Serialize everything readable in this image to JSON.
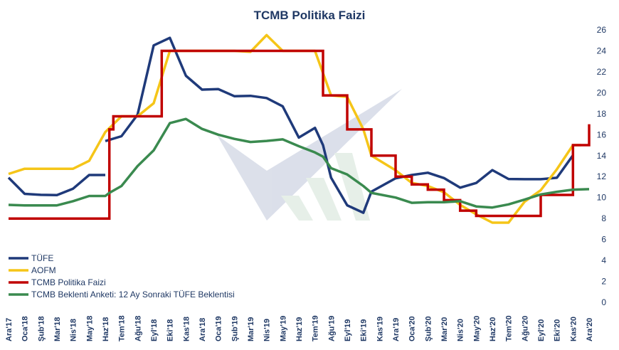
{
  "chart_data": {
    "type": "line",
    "title": "TCMB Politika Faizi",
    "ylim": [
      0,
      26
    ],
    "yticks": [
      0,
      2,
      4,
      6,
      8,
      10,
      12,
      14,
      16,
      18,
      20,
      22,
      24,
      26
    ],
    "x_tick_labels": [
      "Ara'17",
      "Oca'18",
      "Şub'18",
      "Mar'18",
      "Nis'18",
      "May'18",
      "Haz'18",
      "Tem'18",
      "Ağu'18",
      "Eyl'18",
      "Eki'18",
      "Kas'18",
      "Ara'18",
      "Oca'19",
      "Şub'19",
      "Mar'19",
      "Nis'19",
      "May'19",
      "Haz'19",
      "Tem'19",
      "Ağu'19",
      "Eyl'19",
      "Eki'19",
      "Kas'19",
      "Ara'19",
      "Oca'20",
      "Şub'20",
      "Mar'20",
      "Nis'20",
      "May'20",
      "Haz'20",
      "Tem'20",
      "Ağu'20",
      "Eyl'20",
      "Eki'20",
      "Kas'20",
      "Ara'20"
    ],
    "x_tick_positions": [
      0,
      2,
      4,
      6,
      8,
      10,
      12,
      14,
      16,
      18,
      20,
      22,
      24,
      26,
      28,
      30,
      32,
      34,
      36,
      38,
      40,
      42,
      44,
      46,
      48,
      50,
      52,
      54,
      56,
      58,
      60,
      62,
      64,
      66,
      68,
      70,
      72
    ],
    "x_range": [
      0,
      72
    ],
    "legend_position": "bottom-left",
    "series": [
      {
        "name": "TÜFE",
        "color": "#1f3a7a",
        "points": [
          [
            0,
            11.9
          ],
          [
            2,
            10.35
          ],
          [
            4,
            10.26
          ],
          [
            6,
            10.23
          ],
          [
            8,
            10.85
          ],
          [
            10,
            12.15
          ],
          [
            12,
            12.15
          ],
          [
            null,
            null
          ],
          [
            12,
            15.39
          ],
          [
            14,
            15.85
          ],
          [
            16,
            17.9
          ],
          [
            18,
            24.52
          ],
          [
            20,
            25.24
          ],
          [
            22,
            21.62
          ],
          [
            24,
            20.3
          ],
          [
            26,
            20.35
          ],
          [
            28,
            19.67
          ],
          [
            30,
            19.71
          ],
          [
            32,
            19.5
          ],
          [
            34,
            18.71
          ],
          [
            36,
            15.72
          ],
          [
            38,
            16.65
          ],
          [
            39,
            15.0
          ],
          [
            40,
            11.9
          ],
          [
            42,
            9.26
          ],
          [
            44,
            8.55
          ],
          [
            45,
            10.56
          ],
          [
            48,
            11.84
          ],
          [
            50,
            12.15
          ],
          [
            52,
            12.37
          ],
          [
            54,
            11.86
          ],
          [
            56,
            10.94
          ],
          [
            58,
            11.39
          ],
          [
            60,
            12.62
          ],
          [
            62,
            11.77
          ],
          [
            64,
            11.75
          ],
          [
            66,
            11.75
          ],
          [
            68,
            11.89
          ],
          [
            70,
            14.03
          ]
        ]
      },
      {
        "name": "AOFM",
        "color": "#f5c518",
        "points": [
          [
            0,
            12.25
          ],
          [
            2,
            12.75
          ],
          [
            4,
            12.75
          ],
          [
            6,
            12.75
          ],
          [
            8,
            12.75
          ],
          [
            10,
            13.5
          ],
          [
            12,
            16.25
          ],
          [
            14,
            17.75
          ],
          [
            16,
            17.75
          ],
          [
            18,
            19.0
          ],
          [
            20,
            24.0
          ],
          [
            22,
            24.0
          ],
          [
            24,
            24.0
          ],
          [
            26,
            24.0
          ],
          [
            28,
            24.0
          ],
          [
            30,
            23.9
          ],
          [
            32,
            25.5
          ],
          [
            34,
            24.0
          ],
          [
            36,
            24.0
          ],
          [
            38,
            24.0
          ],
          [
            40,
            19.75
          ],
          [
            42,
            19.6
          ],
          [
            44,
            16.5
          ],
          [
            45,
            14.0
          ],
          [
            48,
            12.6
          ],
          [
            50,
            11.4
          ],
          [
            52,
            11.1
          ],
          [
            54,
            10.5
          ],
          [
            56,
            9.3
          ],
          [
            58,
            8.4
          ],
          [
            60,
            7.6
          ],
          [
            62,
            7.6
          ],
          [
            64,
            9.6
          ],
          [
            66,
            10.7
          ],
          [
            68,
            12.7
          ],
          [
            70,
            15.0
          ],
          [
            71,
            15.0
          ]
        ]
      },
      {
        "name": "TCMB Politika Faizi",
        "color": "#c00000",
        "step": true,
        "points": [
          [
            0,
            8.0
          ],
          [
            12.5,
            8.0
          ],
          [
            12.5,
            16.5
          ],
          [
            13,
            16.5
          ],
          [
            13,
            17.75
          ],
          [
            19,
            17.75
          ],
          [
            19,
            24.0
          ],
          [
            39,
            24.0
          ],
          [
            39,
            19.75
          ],
          [
            42,
            19.75
          ],
          [
            42,
            16.5
          ],
          [
            45,
            16.5
          ],
          [
            45,
            14.0
          ],
          [
            48,
            14.0
          ],
          [
            48,
            12.0
          ],
          [
            50,
            12.0
          ],
          [
            50,
            11.25
          ],
          [
            52,
            11.25
          ],
          [
            52,
            10.75
          ],
          [
            54,
            10.75
          ],
          [
            54,
            9.75
          ],
          [
            56,
            9.75
          ],
          [
            56,
            8.75
          ],
          [
            58,
            8.75
          ],
          [
            58,
            8.25
          ],
          [
            66,
            8.25
          ],
          [
            66,
            10.25
          ],
          [
            70,
            10.25
          ],
          [
            70,
            15.0
          ],
          [
            72,
            15.0
          ],
          [
            72,
            17.0
          ]
        ]
      },
      {
        "name": "TCMB Beklenti Anketi: 12 Ay Sonraki TÜFE Beklentisi",
        "color": "#3a8a4f",
        "points": [
          [
            0,
            9.3
          ],
          [
            2,
            9.25
          ],
          [
            4,
            9.25
          ],
          [
            6,
            9.25
          ],
          [
            8,
            9.65
          ],
          [
            10,
            10.15
          ],
          [
            12,
            10.15
          ],
          [
            12.5,
            10.45
          ],
          [
            14,
            11.1
          ],
          [
            16,
            13.0
          ],
          [
            18,
            14.5
          ],
          [
            20,
            17.1
          ],
          [
            22,
            17.5
          ],
          [
            24,
            16.55
          ],
          [
            26,
            16.0
          ],
          [
            28,
            15.6
          ],
          [
            30,
            15.3
          ],
          [
            32,
            15.4
          ],
          [
            34,
            15.55
          ],
          [
            36,
            14.9
          ],
          [
            38,
            14.3
          ],
          [
            39,
            13.9
          ],
          [
            40,
            12.8
          ],
          [
            42,
            12.2
          ],
          [
            44,
            11.1
          ],
          [
            45,
            10.45
          ],
          [
            48,
            10.0
          ],
          [
            50,
            9.5
          ],
          [
            52,
            9.55
          ],
          [
            54,
            9.55
          ],
          [
            56,
            9.65
          ],
          [
            58,
            9.15
          ],
          [
            60,
            9.05
          ],
          [
            62,
            9.35
          ],
          [
            64,
            9.8
          ],
          [
            66,
            10.3
          ],
          [
            68,
            10.55
          ],
          [
            70,
            10.75
          ],
          [
            72,
            10.8
          ]
        ]
      }
    ]
  }
}
